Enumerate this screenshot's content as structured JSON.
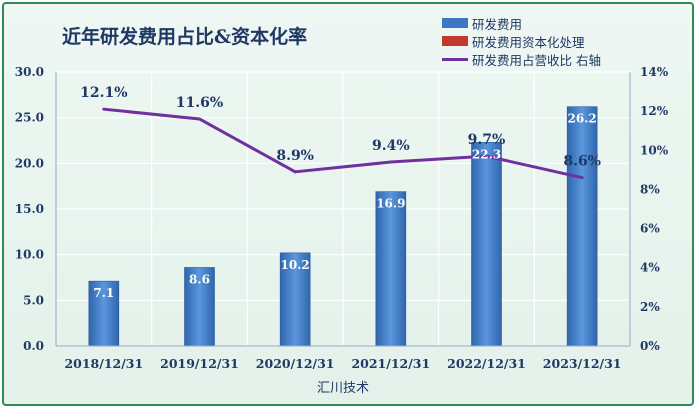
{
  "chart_data": {
    "type": "bar",
    "title": "近年研发费用占比&资本化率",
    "xlabel": "汇川技术",
    "categories": [
      "2018/12/31",
      "2019/12/31",
      "2020/12/31",
      "2021/12/31",
      "2022/12/31",
      "2023/12/31"
    ],
    "series": [
      {
        "name": "研发费用",
        "type": "bar",
        "axis": "left",
        "values": [
          7.1,
          8.6,
          10.2,
          16.9,
          22.3,
          26.2
        ],
        "color": "#3a78c4"
      },
      {
        "name": "研发费用资本化处理",
        "type": "bar",
        "axis": "left",
        "values": [
          0,
          0,
          0,
          0,
          0,
          0
        ],
        "color": "#c0392b"
      },
      {
        "name": "研发费用占营收比 右轴",
        "type": "line",
        "axis": "right",
        "values": [
          12.1,
          11.6,
          8.9,
          9.4,
          9.7,
          8.6
        ],
        "color": "#7030a0"
      }
    ],
    "bar_labels": [
      "7.1",
      "8.6",
      "10.2",
      "16.9",
      "22.3",
      "26.2"
    ],
    "ratio_labels": [
      "12.1%",
      "11.6%",
      "8.9%",
      "9.4%",
      "9.7%",
      "8.6%"
    ],
    "y_left": {
      "lim": [
        0,
        30
      ],
      "ticks": [
        "0.0",
        "5.0",
        "10.0",
        "15.0",
        "20.0",
        "25.0",
        "30.0"
      ]
    },
    "y_right": {
      "lim": [
        0,
        14
      ],
      "ticks": [
        "0%",
        "2%",
        "4%",
        "6%",
        "8%",
        "10%",
        "12%",
        "14%"
      ]
    },
    "grid": true,
    "legend_position": "top-right"
  }
}
